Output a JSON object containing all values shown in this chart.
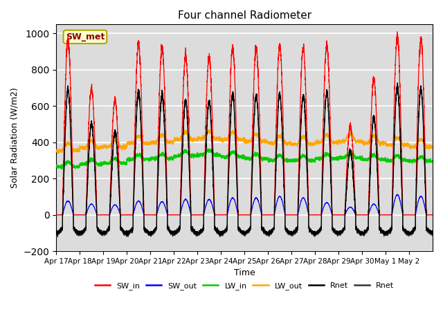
{
  "title": "Four channel Radiometer",
  "xlabel": "Time",
  "ylabel": "Solar Radiation (W/m2)",
  "ylim": [
    -200,
    1050
  ],
  "date_labels": [
    "Apr 17",
    "Apr 18",
    "Apr 19",
    "Apr 20",
    "Apr 21",
    "Apr 22",
    "Apr 23",
    "Apr 24",
    "Apr 25",
    "Apr 26",
    "Apr 27",
    "Apr 28",
    "Apr 29",
    "Apr 30",
    "May 1",
    "May 2"
  ],
  "station_label": "SW_met",
  "station_label_color": "#8B0000",
  "station_box_facecolor": "#FFFFCC",
  "station_box_edgecolor": "#AAAA00",
  "colors": {
    "SW_in": "#FF0000",
    "SW_out": "#0000FF",
    "LW_in": "#00CC00",
    "LW_out": "#FFA500",
    "Rnet1": "#000000",
    "Rnet2": "#333333"
  },
  "legend_labels": [
    "SW_in",
    "SW_out",
    "LW_in",
    "LW_out",
    "Rnet",
    "Rnet"
  ],
  "background_color": "#DCDCDC",
  "grid_color": "#FFFFFF",
  "n_days": 16,
  "pts_per_day": 288,
  "SW_in_peaks": [
    960,
    700,
    635,
    945,
    920,
    875,
    870,
    925,
    920,
    930,
    920,
    940,
    490,
    750,
    980,
    965
  ],
  "SW_out_peaks": [
    90,
    70,
    65,
    90,
    85,
    100,
    100,
    110,
    110,
    120,
    110,
    80,
    50,
    70,
    130,
    120
  ],
  "LW_in_base": 295,
  "LW_out_base": 385,
  "Rnet_night": -100,
  "sunrise": 0.27,
  "sunset": 0.73
}
